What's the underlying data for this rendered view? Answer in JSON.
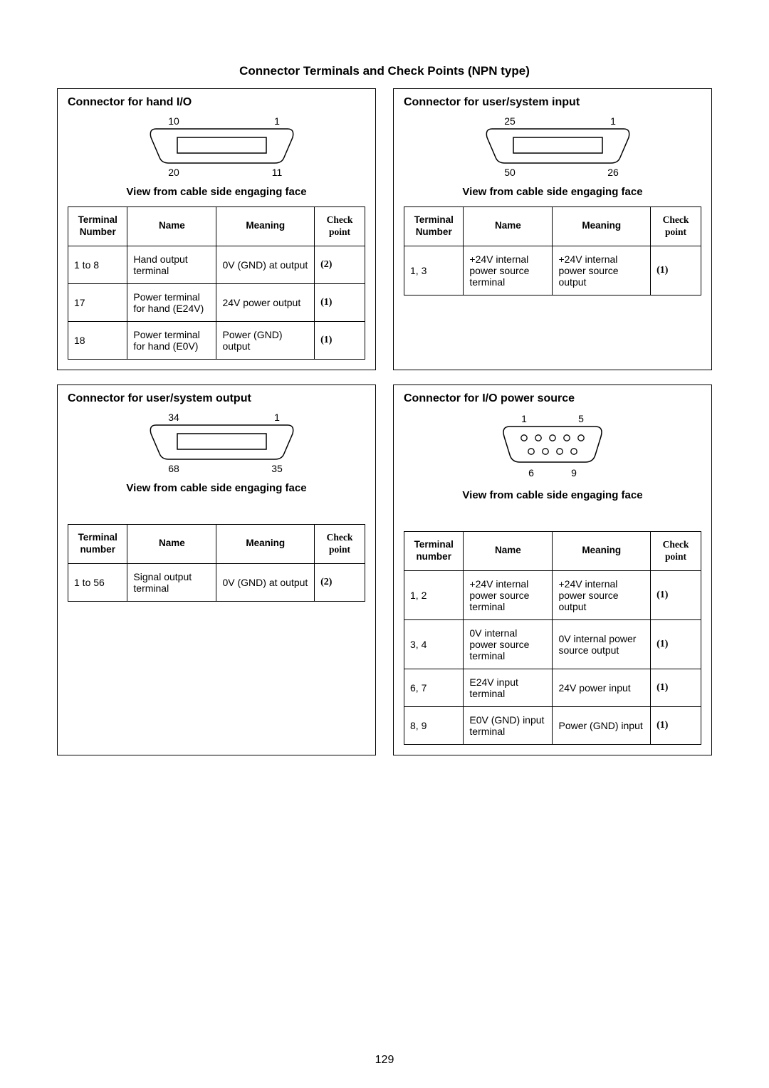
{
  "page_title": "Connector Terminals and Check Points (NPN type)",
  "page_number": "129",
  "colors": {
    "text": "#000000",
    "background": "#ffffff",
    "border": "#000000"
  },
  "typography": {
    "title_fontsize_pt": 13,
    "panel_title_fontsize_pt": 12,
    "table_fontsize_pt": 10.5,
    "view_label_fontsize_pt": 11.5
  },
  "panels": {
    "hand_io": {
      "title": "Connector for hand I/O",
      "view_label": "View from cable side engaging face",
      "connector": {
        "type": "dsub-2row",
        "top_left": "10",
        "top_right": "1",
        "bottom_left": "20",
        "bottom_right": "11"
      },
      "headers": [
        "Terminal Number",
        "Name",
        "Meaning",
        "Check point"
      ],
      "rows": [
        {
          "tn": "1 to 8",
          "name": "Hand output terminal",
          "meaning": "0V (GND) at output",
          "cp": "(2)"
        },
        {
          "tn": "17",
          "name": "Power terminal for hand (E24V)",
          "meaning": "24V power output",
          "cp": "(1)"
        },
        {
          "tn": "18",
          "name": "Power terminal for hand (E0V)",
          "meaning": "Power (GND) output",
          "cp": "(1)"
        }
      ]
    },
    "user_input": {
      "title": "Connector for user/system input",
      "view_label": "View from cable side engaging face",
      "connector": {
        "type": "dsub-2row",
        "top_left": "25",
        "top_right": "1",
        "bottom_left": "50",
        "bottom_right": "26"
      },
      "headers": [
        "Terminal Number",
        "Name",
        "Meaning",
        "Check point"
      ],
      "rows": [
        {
          "tn": "1, 3",
          "name": "+24V internal power source terminal",
          "meaning": "+24V internal power source output",
          "cp": "(1)"
        }
      ]
    },
    "user_output": {
      "title": "Connector for user/system output",
      "view_label": "View from cable side engaging face",
      "connector": {
        "type": "dsub-2row",
        "top_left": "34",
        "top_right": "1",
        "bottom_left": "68",
        "bottom_right": "35"
      },
      "headers": [
        "Terminal number",
        "Name",
        "Meaning",
        "Check point"
      ],
      "rows": [
        {
          "tn": "1 to 56",
          "name": "Signal output terminal",
          "meaning": "0V (GND) at output",
          "cp": "(2)"
        }
      ]
    },
    "io_power": {
      "title": "Connector for I/O power source",
      "view_label": "View from cable side engaging face",
      "connector": {
        "type": "de9-pins",
        "top_left": "1",
        "top_right": "5",
        "bottom_left": "6",
        "bottom_right": "9"
      },
      "headers": [
        "Terminal number",
        "Name",
        "Meaning",
        "Check point"
      ],
      "rows": [
        {
          "tn": "1, 2",
          "name": "+24V internal power source terminal",
          "meaning": "+24V internal power source output",
          "cp": "(1)"
        },
        {
          "tn": "3, 4",
          "name": "0V internal power source terminal",
          "meaning": "0V internal power source output",
          "cp": "(1)"
        },
        {
          "tn": "6, 7",
          "name": "E24V input terminal",
          "meaning": "24V power input",
          "cp": "(1)"
        },
        {
          "tn": "8, 9",
          "name": "E0V (GND) input terminal",
          "meaning": "Power (GND) input",
          "cp": "(1)"
        }
      ]
    }
  }
}
